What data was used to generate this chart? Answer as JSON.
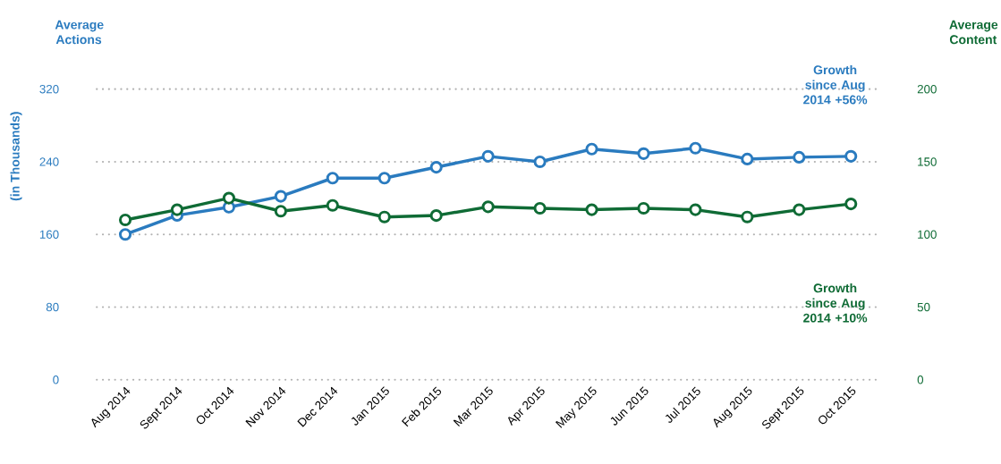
{
  "chart_data": {
    "type": "line",
    "categories": [
      "Aug 2014",
      "Sept 2014",
      "Oct 2014",
      "Nov 2014",
      "Dec 2014",
      "Jan 2015",
      "Feb 2015",
      "Mar 2015",
      "Apr 2015",
      "May 2015",
      "Jun 2015",
      "Jul 2015",
      "Aug 2015",
      "Sept 2015",
      "Oct 2015"
    ],
    "series": [
      {
        "color": "#2a7bbf",
        "values": [
          160,
          181,
          190,
          202,
          222,
          222,
          234,
          246,
          240,
          254,
          249,
          255,
          243,
          245,
          246
        ]
      },
      {
        "color": "#0f6b35",
        "axis": "y2",
        "values": [
          110,
          117,
          125,
          116,
          120,
          112,
          113,
          119,
          118,
          117,
          118,
          117,
          112,
          117,
          121
        ]
      }
    ],
    "ylabel": "(in Thousands)",
    "y2label": "Average Content",
    "ylim": [
      0,
      320
    ],
    "yticks": [
      0,
      80,
      160,
      240,
      320
    ],
    "y2lim": [
      0,
      200
    ],
    "y2ticks": [
      0,
      50,
      100,
      150,
      200
    ],
    "annotations": [
      "Average Actions",
      "Growth since Aug 2014 +56%",
      "Growth since Aug 2014 +10%"
    ],
    "grid": "y",
    "marker": "circle",
    "line_style": "solid"
  }
}
